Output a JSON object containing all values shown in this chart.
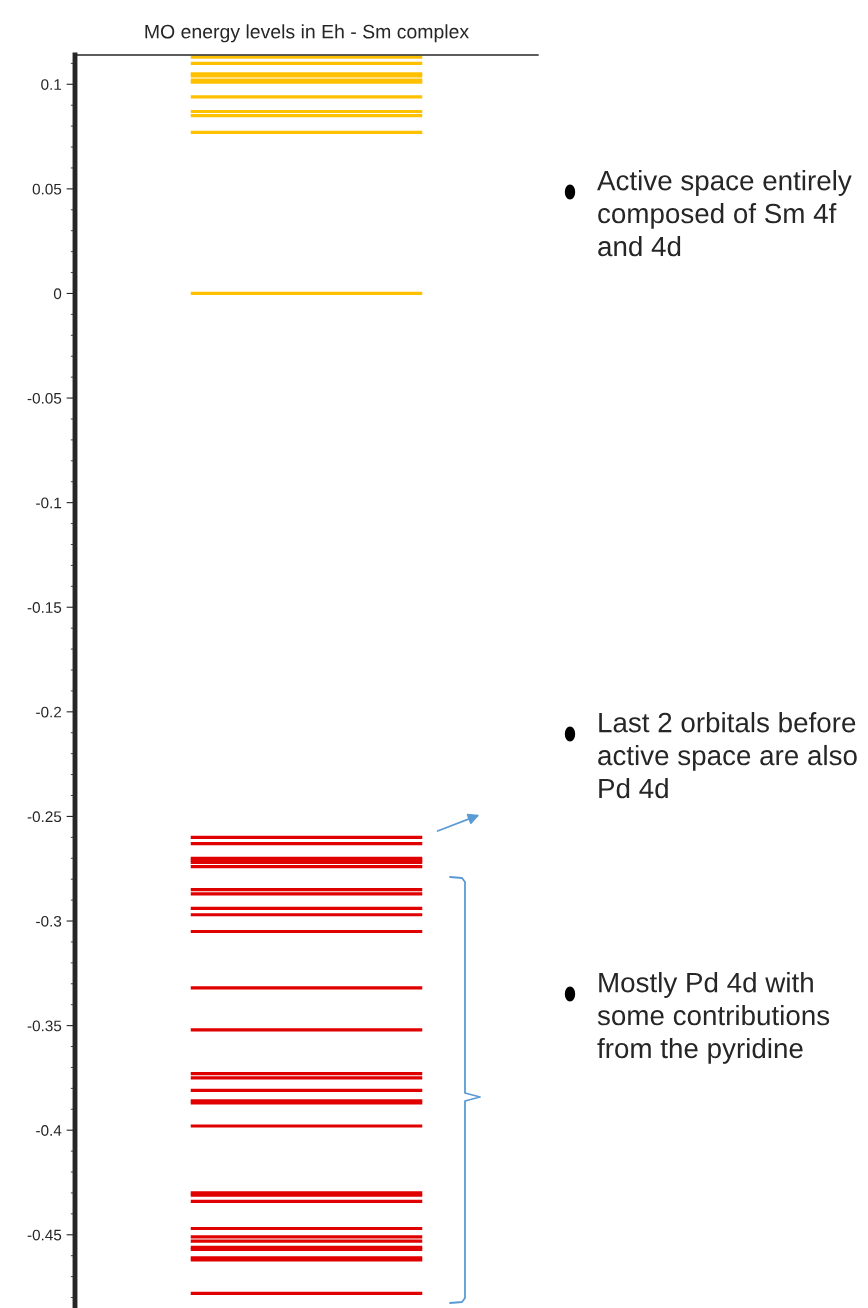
{
  "chart_data": {
    "type": "line",
    "title": "MO energy levels in Eh - Sm complex",
    "categories": [
      null,
      null
    ],
    "ylim": [
      -0.485,
      0.114
    ],
    "yticks": [
      -0.45,
      -0.4,
      -0.35,
      -0.3,
      -0.25,
      -0.2,
      -0.15,
      -0.1,
      -0.05,
      0,
      0.05,
      0.1
    ],
    "grid": false,
    "marker": "none",
    "line_style": "solid",
    "series": [
      {
        "color": "#ffc000",
        "values": [
          0.113,
          0.113
        ]
      },
      {
        "color": "#ffc000",
        "values": [
          0.11,
          0.11
        ]
      },
      {
        "color": "#ffc000",
        "values": [
          0.105,
          0.105
        ]
      },
      {
        "color": "#ffc000",
        "values": [
          0.104,
          0.104
        ]
      },
      {
        "color": "#ffc000",
        "values": [
          0.102,
          0.102
        ]
      },
      {
        "color": "#ffc000",
        "values": [
          0.101,
          0.101
        ]
      },
      {
        "color": "#ffc000",
        "values": [
          0.094,
          0.094
        ]
      },
      {
        "color": "#ffc000",
        "values": [
          0.087,
          0.087
        ]
      },
      {
        "color": "#ffc000",
        "values": [
          0.085,
          0.085
        ]
      },
      {
        "color": "#ffc000",
        "values": [
          0.077,
          0.077
        ]
      },
      {
        "color": "#ffc000",
        "values": [
          0.0,
          0.0
        ]
      },
      {
        "color": "#e00000",
        "values": [
          -0.26,
          -0.26
        ]
      },
      {
        "color": "#e00000",
        "values": [
          -0.263,
          -0.263
        ]
      },
      {
        "color": "#e00000",
        "values": [
          -0.27,
          -0.27
        ]
      },
      {
        "color": "#e00000",
        "values": [
          -0.271,
          -0.271
        ]
      },
      {
        "color": "#e00000",
        "values": [
          -0.272,
          -0.272
        ]
      },
      {
        "color": "#e00000",
        "values": [
          -0.274,
          -0.274
        ]
      },
      {
        "color": "#e00000",
        "values": [
          -0.285,
          -0.285
        ]
      },
      {
        "color": "#e00000",
        "values": [
          -0.287,
          -0.287
        ]
      },
      {
        "color": "#e00000",
        "values": [
          -0.294,
          -0.294
        ]
      },
      {
        "color": "#e00000",
        "values": [
          -0.297,
          -0.297
        ]
      },
      {
        "color": "#e00000",
        "values": [
          -0.305,
          -0.305
        ]
      },
      {
        "color": "#e00000",
        "values": [
          -0.332,
          -0.332
        ]
      },
      {
        "color": "#e00000",
        "values": [
          -0.352,
          -0.352
        ]
      },
      {
        "color": "#e00000",
        "values": [
          -0.373,
          -0.373
        ]
      },
      {
        "color": "#e00000",
        "values": [
          -0.375,
          -0.375
        ]
      },
      {
        "color": "#e00000",
        "values": [
          -0.381,
          -0.381
        ]
      },
      {
        "color": "#e00000",
        "values": [
          -0.386,
          -0.386
        ]
      },
      {
        "color": "#e00000",
        "values": [
          -0.387,
          -0.387
        ]
      },
      {
        "color": "#e00000",
        "values": [
          -0.398,
          -0.398
        ]
      },
      {
        "color": "#e00000",
        "values": [
          -0.43,
          -0.43
        ]
      },
      {
        "color": "#e00000",
        "values": [
          -0.431,
          -0.431
        ]
      },
      {
        "color": "#e00000",
        "values": [
          -0.434,
          -0.434
        ]
      },
      {
        "color": "#e00000",
        "values": [
          -0.447,
          -0.447
        ]
      },
      {
        "color": "#e00000",
        "values": [
          -0.451,
          -0.451
        ]
      },
      {
        "color": "#e00000",
        "values": [
          -0.453,
          -0.453
        ]
      },
      {
        "color": "#e00000",
        "values": [
          -0.456,
          -0.456
        ]
      },
      {
        "color": "#e00000",
        "values": [
          -0.457,
          -0.457
        ]
      },
      {
        "color": "#e00000",
        "values": [
          -0.461,
          -0.461
        ]
      },
      {
        "color": "#e00000",
        "values": [
          -0.462,
          -0.462
        ]
      },
      {
        "color": "#e00000",
        "values": [
          -0.478,
          -0.478
        ]
      }
    ],
    "annotations": [
      "Active space entirely composed of Sm 4f and 4d",
      "Last 2 orbitals before active space are also Pd 4d",
      "Mostly Pd 4d with some contributions from the pyridine"
    ]
  }
}
